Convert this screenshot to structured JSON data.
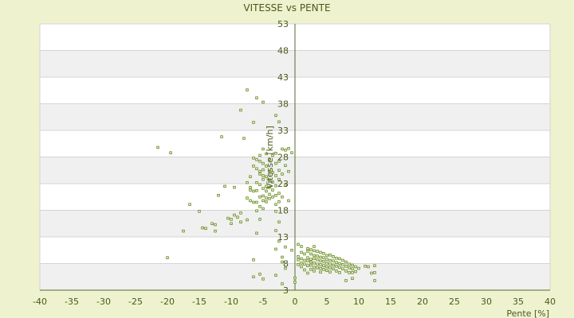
{
  "chart_data": {
    "type": "scatter",
    "title": "VITESSE vs PENTE",
    "xlabel": "Pente [%]",
    "ylabel": "Vitesse [km/h]",
    "xlim": [
      -40,
      40
    ],
    "ylim": [
      3,
      53
    ],
    "x_ticks": [
      "-40",
      "-35",
      "-30",
      "-25",
      "-20",
      "-15",
      "-10",
      "-5",
      "0",
      "5",
      "10",
      "15",
      "20",
      "25",
      "30",
      "35",
      "40"
    ],
    "y_ticks": [
      "3",
      "8",
      "13",
      "18",
      "23",
      "28",
      "33",
      "38",
      "43",
      "48",
      "53"
    ],
    "grid": true,
    "legend": "none",
    "colors": {
      "background": "#eef2cf",
      "plot_band_light": "#ffffff",
      "plot_band_dark": "#f0f0f0",
      "grid": "#d4d4d4",
      "axis": "#556b2f",
      "marker": "#6b8e23",
      "text": "#4a5a1a"
    },
    "points": [
      [
        -21.5,
        29.8
      ],
      [
        -19.5,
        28.8
      ],
      [
        -20,
        9.1
      ],
      [
        -17.5,
        14.1
      ],
      [
        -16.5,
        19.1
      ],
      [
        -15,
        17.8
      ],
      [
        -14.5,
        14.7
      ],
      [
        -14,
        14.6
      ],
      [
        -13,
        15.5
      ],
      [
        -12.5,
        15.3
      ],
      [
        -12.5,
        14.1
      ],
      [
        -12,
        20.8
      ],
      [
        -11.5,
        31.8
      ],
      [
        -11,
        22.5
      ],
      [
        -10.5,
        16.5
      ],
      [
        -10,
        16.3
      ],
      [
        -10,
        15.5
      ],
      [
        -9.5,
        22.3
      ],
      [
        -9.5,
        17.1
      ],
      [
        -9,
        16.7
      ],
      [
        -8.5,
        17.5
      ],
      [
        -8.5,
        15.8
      ],
      [
        -8.5,
        36.8
      ],
      [
        -8,
        31.5
      ],
      [
        -7.5,
        40.6
      ],
      [
        -7.5,
        23.2
      ],
      [
        -7.5,
        20.3
      ],
      [
        -7.5,
        16.2
      ],
      [
        -7,
        21.8
      ],
      [
        -7,
        19.8
      ],
      [
        -7,
        22.3
      ],
      [
        -7,
        24.3
      ],
      [
        -6.5,
        34.5
      ],
      [
        -6.5,
        27.8
      ],
      [
        -6.5,
        26.3
      ],
      [
        -6.5,
        21.6
      ],
      [
        -6.5,
        19.5
      ],
      [
        -6.5,
        8.7
      ],
      [
        -6.5,
        5.5
      ],
      [
        -6,
        39.1
      ],
      [
        -6,
        27.5
      ],
      [
        -6,
        25.8
      ],
      [
        -6,
        23.2
      ],
      [
        -6,
        21.7
      ],
      [
        -6,
        19.5
      ],
      [
        -6,
        17.9
      ],
      [
        -6,
        13.7
      ],
      [
        -5.5,
        28.3
      ],
      [
        -5.5,
        27.2
      ],
      [
        -5.5,
        25.3
      ],
      [
        -5.5,
        24.8
      ],
      [
        -5.5,
        22.8
      ],
      [
        -5.5,
        20.5
      ],
      [
        -5.5,
        18.7
      ],
      [
        -5.5,
        16.3
      ],
      [
        -5.5,
        6.0
      ],
      [
        -5,
        38.3
      ],
      [
        -5,
        29.5
      ],
      [
        -5,
        26.8
      ],
      [
        -5,
        25.6
      ],
      [
        -5,
        24.5
      ],
      [
        -5,
        23.8
      ],
      [
        -5,
        22.1
      ],
      [
        -5,
        20.7
      ],
      [
        -5,
        19.8
      ],
      [
        -5,
        18.3
      ],
      [
        -5,
        5.1
      ],
      [
        -4.5,
        28.6
      ],
      [
        -4.5,
        26.3
      ],
      [
        -4.5,
        24.3
      ],
      [
        -4.5,
        22.5
      ],
      [
        -4.5,
        21.6
      ],
      [
        -4.5,
        20.3
      ],
      [
        -4.5,
        19.6
      ],
      [
        -4,
        27.6
      ],
      [
        -4,
        25.3
      ],
      [
        -4,
        23.7
      ],
      [
        -4,
        22.3
      ],
      [
        -4,
        21.0
      ],
      [
        -4,
        20.2
      ],
      [
        -3.5,
        28.3
      ],
      [
        -3.5,
        25.1
      ],
      [
        -3.5,
        23.3
      ],
      [
        -3.5,
        21.8
      ],
      [
        -3.5,
        20.5
      ],
      [
        -3,
        35.8
      ],
      [
        -3,
        28.7
      ],
      [
        -3,
        26.8
      ],
      [
        -3,
        24.5
      ],
      [
        -3,
        22.6
      ],
      [
        -3,
        20.8
      ],
      [
        -3,
        19.1
      ],
      [
        -3,
        17.8
      ],
      [
        -3,
        14.2
      ],
      [
        -3,
        10.7
      ],
      [
        -3,
        5.8
      ],
      [
        -2.5,
        34.6
      ],
      [
        -2.5,
        27.2
      ],
      [
        -2.5,
        25.5
      ],
      [
        -2.5,
        23.8
      ],
      [
        -2.5,
        21.2
      ],
      [
        -2.5,
        19.6
      ],
      [
        -2.5,
        15.8
      ],
      [
        -2.5,
        12.2
      ],
      [
        -2,
        29.5
      ],
      [
        -2,
        24.8
      ],
      [
        -2,
        20.5
      ],
      [
        -2,
        9.2
      ],
      [
        -2,
        8.3
      ],
      [
        -2,
        4.2
      ],
      [
        -1.5,
        29.3
      ],
      [
        -1.5,
        26.4
      ],
      [
        -1.5,
        22.7
      ],
      [
        -1.5,
        11.1
      ],
      [
        -1.5,
        7.1
      ],
      [
        -1,
        29.6
      ],
      [
        -1,
        25.3
      ],
      [
        -1,
        19.8
      ],
      [
        -0.5,
        28.8
      ],
      [
        -0.5,
        10.5
      ],
      [
        0,
        5.3
      ],
      [
        0,
        4.5
      ],
      [
        0.5,
        11.6
      ],
      [
        0.5,
        8.7
      ],
      [
        0.5,
        7.8
      ],
      [
        0.5,
        9.3
      ],
      [
        1,
        11.2
      ],
      [
        1,
        10.1
      ],
      [
        1,
        8.9
      ],
      [
        1,
        8.1
      ],
      [
        1,
        7.4
      ],
      [
        1.5,
        9.8
      ],
      [
        1.5,
        8.6
      ],
      [
        1.5,
        7.9
      ],
      [
        1.5,
        6.8
      ],
      [
        2,
        10.8
      ],
      [
        2,
        10.3
      ],
      [
        2,
        9.1
      ],
      [
        2,
        8.5
      ],
      [
        2,
        7.6
      ],
      [
        2,
        6.2
      ],
      [
        2.5,
        10.6
      ],
      [
        2.5,
        9.8
      ],
      [
        2.5,
        8.8
      ],
      [
        2.5,
        8.3
      ],
      [
        2.5,
        7.7
      ],
      [
        2.5,
        6.9
      ],
      [
        3,
        11.2
      ],
      [
        3,
        10.4
      ],
      [
        3,
        9.5
      ],
      [
        3,
        8.9
      ],
      [
        3,
        8.1
      ],
      [
        3,
        7.3
      ],
      [
        3,
        6.6
      ],
      [
        3.5,
        10.3
      ],
      [
        3.5,
        9.4
      ],
      [
        3.5,
        8.7
      ],
      [
        3.5,
        7.9
      ],
      [
        3.5,
        7.2
      ],
      [
        4,
        10.1
      ],
      [
        4,
        9.2
      ],
      [
        4,
        8.5
      ],
      [
        4,
        7.8
      ],
      [
        4,
        7.1
      ],
      [
        4,
        6.4
      ],
      [
        4.5,
        9.9
      ],
      [
        4.5,
        9.1
      ],
      [
        4.5,
        8.4
      ],
      [
        4.5,
        7.6
      ],
      [
        4.5,
        6.9
      ],
      [
        5,
        9.5
      ],
      [
        5,
        8.8
      ],
      [
        5,
        8.1
      ],
      [
        5,
        7.4
      ],
      [
        5,
        6.7
      ],
      [
        5.5,
        9.6
      ],
      [
        5.5,
        8.6
      ],
      [
        5.5,
        7.9
      ],
      [
        5.5,
        7.2
      ],
      [
        5.5,
        6.4
      ],
      [
        6,
        9.3
      ],
      [
        6,
        8.5
      ],
      [
        6,
        7.7
      ],
      [
        6,
        7.0
      ],
      [
        6.5,
        9.0
      ],
      [
        6.5,
        8.2
      ],
      [
        6.5,
        7.5
      ],
      [
        6.5,
        6.6
      ],
      [
        7,
        8.9
      ],
      [
        7,
        8.0
      ],
      [
        7,
        7.3
      ],
      [
        7,
        6.3
      ],
      [
        7.5,
        8.6
      ],
      [
        7.5,
        7.8
      ],
      [
        7.5,
        7.0
      ],
      [
        8,
        8.3
      ],
      [
        8,
        7.5
      ],
      [
        8,
        6.6
      ],
      [
        8,
        4.8
      ],
      [
        8.5,
        7.9
      ],
      [
        8.5,
        7.2
      ],
      [
        8.5,
        6.3
      ],
      [
        9,
        7.7
      ],
      [
        9,
        7.0
      ],
      [
        9,
        6.3
      ],
      [
        9,
        5.2
      ],
      [
        9.5,
        7.4
      ],
      [
        9.5,
        6.5
      ],
      [
        10,
        7.1
      ],
      [
        11,
        7.5
      ],
      [
        11.5,
        7.4
      ],
      [
        12,
        6.2
      ],
      [
        12.5,
        7.6
      ],
      [
        12.5,
        6.3
      ],
      [
        12.5,
        4.8
      ]
    ]
  }
}
